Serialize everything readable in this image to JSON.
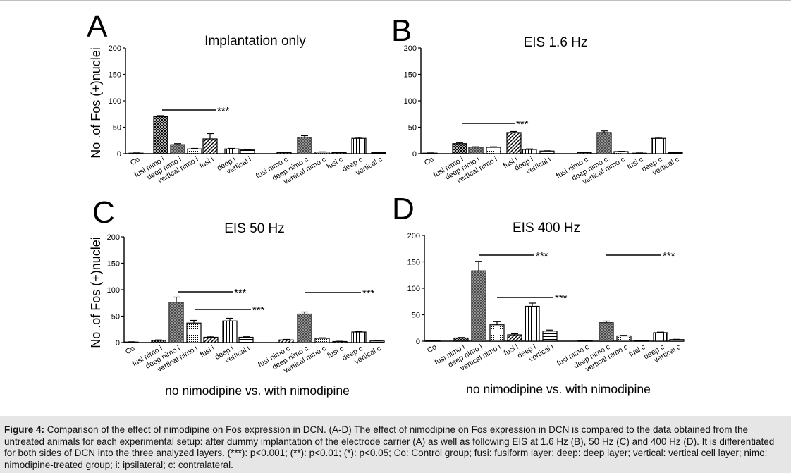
{
  "figure": {
    "ylabel": "No .of Fos (+)nuclei",
    "sig_label": "***",
    "xlabel_bottom": "no nimodipine vs. with nimodipine",
    "categories": [
      "Co",
      "fusi nimo i",
      "deep nimo i",
      "vertical nimo i",
      "fusi i",
      "deep i",
      "vertical i",
      "fusi nimo c",
      "deep nimo c",
      "vertical nimo c",
      "fusi c",
      "deep c",
      "vertical c"
    ]
  },
  "chart_data": [
    {
      "type": "bar",
      "letter": "A",
      "title": "Implantation only",
      "ylabel": "No .of Fos (+)nuclei",
      "ylim": [
        0,
        200
      ],
      "yticks": [
        0,
        50,
        100,
        150,
        200
      ],
      "categories": [
        "Co",
        "fusi nimo i",
        "deep nimo i",
        "vertical nimo i",
        "fusi i",
        "deep i",
        "vertical i",
        "fusi nimo c",
        "deep nimo c",
        "vertical nimo c",
        "fusi c",
        "deep c",
        "vertical c"
      ],
      "values": [
        1,
        70,
        17,
        9,
        28,
        9,
        7,
        2,
        31,
        3,
        2,
        29,
        2
      ],
      "errors": [
        0.5,
        2,
        2,
        1,
        10,
        1,
        1,
        0.5,
        3,
        0.5,
        0.5,
        2,
        0.5
      ],
      "significance": [
        "***"
      ]
    },
    {
      "type": "bar",
      "letter": "B",
      "title": "EIS 1.6 Hz",
      "ylim": [
        0,
        200
      ],
      "yticks": [
        0,
        50,
        100,
        150,
        200
      ],
      "categories": [
        "Co",
        "fusi nimo i",
        "deep nimo i",
        "vertical nimo i",
        "fusi i",
        "deep i",
        "vertical i",
        "fusi nimo c",
        "deep nimo c",
        "vertical nimo c",
        "fusi c",
        "deep c",
        "vertical c"
      ],
      "values": [
        1,
        19,
        12,
        12,
        40,
        8,
        5,
        2,
        40,
        4,
        1,
        29,
        2
      ],
      "errors": [
        0.5,
        2,
        1,
        1,
        2,
        1,
        0.5,
        0.5,
        3,
        0.5,
        0.5,
        2,
        0.5
      ],
      "significance": [
        "***"
      ]
    },
    {
      "type": "bar",
      "letter": "C",
      "title": "EIS 50 Hz",
      "ylabel": "No .of Fos (+)nuclei",
      "xlabel": "no nimodipine vs. with nimodipine",
      "ylim": [
        0,
        200
      ],
      "yticks": [
        0,
        50,
        100,
        150,
        200
      ],
      "categories": [
        "Co",
        "fusi nimo i",
        "deep nimo i",
        "vertical nimo i",
        "fusi i",
        "deep i",
        "vertical i",
        "fusi nimo c",
        "deep nimo c",
        "vertical nimo c",
        "fusi c",
        "deep c",
        "vertical c"
      ],
      "values": [
        1,
        4,
        76,
        37,
        10,
        41,
        10,
        5,
        54,
        8,
        2,
        20,
        3
      ],
      "errors": [
        0.5,
        1,
        10,
        5,
        2,
        5,
        1,
        1,
        4,
        1,
        0.5,
        1,
        0.5
      ],
      "significance": [
        "***",
        "***",
        "***"
      ]
    },
    {
      "type": "bar",
      "letter": "D",
      "title": "EIS 400 Hz",
      "xlabel": "no nimodipine vs. with nimodipine",
      "ylim": [
        0,
        200
      ],
      "yticks": [
        0,
        50,
        100,
        150,
        200
      ],
      "categories": [
        "Co",
        "fusi nimo i",
        "deep nimo i",
        "vertical nimo i",
        "fusi i",
        "deep i",
        "vertical i",
        "fusi nimo c",
        "deep nimo c",
        "vertical nimo c",
        "fusi c",
        "deep c",
        "vertical c"
      ],
      "values": [
        1,
        6,
        133,
        31,
        12,
        66,
        19,
        1,
        35,
        10,
        1,
        16,
        3
      ],
      "errors": [
        0.5,
        1,
        18,
        6,
        2,
        6,
        2,
        0.5,
        3,
        1,
        0.5,
        1,
        0.5
      ],
      "significance": [
        "***",
        "***",
        "***"
      ]
    }
  ],
  "caption": {
    "label": "Figure 4:",
    "text": "Comparison of the effect of nimodipine on Fos expression in DCN. (A-D) The effect of nimodipine on Fos expression in DCN is compared to the data obtained from the untreated animals for each experimental setup: after dummy implantation of the electrode carrier (A) as well as following EIS at 1.6 Hz (B), 50 Hz (C) and 400 Hz (D). It is differentiated for both sides of DCN into the three analyzed layers. (***): p<0.001; (**): p<0.01; (*): p<0.05; Co: Control group; fusi: fusiform layer; deep: deep layer; vertical: vertical cell layer; nimo: nimodipine-treated group; i: ipsilateral; c: contralateral."
  }
}
